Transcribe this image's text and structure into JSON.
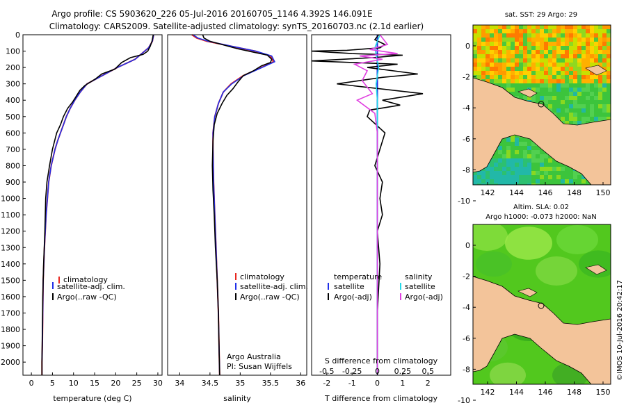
{
  "header": {
    "line1": "Argo profile: CS 5903620_226 05-Jul-2016 20160705_1146 4.392S 146.091E",
    "line2": "Climatology: CARS2009. Satellite-adjusted climatology: synTS_20160703.nc (2.1d earlier)"
  },
  "colors": {
    "climatology": "#e8261e",
    "satellite": "#1f2ee8",
    "argo": "#000000",
    "sal_satellite": "#22d8e8",
    "sal_argo": "#e040e0",
    "land": "#f3c49a",
    "sea_green": "#3cc43c"
  },
  "chart_data": [
    {
      "type": "line",
      "id": "temperature",
      "xlabel": "temperature (deg C)",
      "ylabel": "",
      "xlim": [
        -2,
        31
      ],
      "ylim": [
        2080,
        0
      ],
      "xticks": [
        "0",
        "5",
        "10",
        "15",
        "20",
        "25",
        "30"
      ],
      "yticks": [
        "0",
        "100",
        "200",
        "300",
        "400",
        "500",
        "600",
        "700",
        "800",
        "900",
        "1000",
        "1100",
        "1200",
        "1300",
        "1400",
        "1500",
        "1600",
        "1700",
        "1800",
        "1900",
        "2000"
      ],
      "legend": [
        "climatology",
        "satellite-adj. clim.",
        "Argo(..raw -QC)"
      ],
      "series": [
        {
          "name": "climatology",
          "x": [
            29.0,
            28.7,
            27.8,
            24.6,
            20.4,
            16.8,
            13.2,
            11.6,
            10.3,
            9.2,
            8.3,
            7.6,
            6.9,
            6.2,
            5.6,
            4.7,
            4.1,
            3.8,
            3.5,
            3.3,
            3.1,
            2.8,
            2.7,
            2.6,
            2.5,
            2.5
          ],
          "y": [
            0,
            40,
            80,
            150,
            200,
            250,
            300,
            350,
            400,
            450,
            500,
            550,
            600,
            650,
            700,
            800,
            900,
            1000,
            1100,
            1200,
            1300,
            1500,
            1700,
            1900,
            2000,
            2080
          ]
        },
        {
          "name": "satellite-adj. clim.",
          "x": [
            29.0,
            28.7,
            27.8,
            24.6,
            20.4,
            16.8,
            13.2,
            11.6,
            10.3,
            9.2,
            8.3,
            7.6,
            6.9,
            6.2,
            5.6,
            4.7,
            4.1,
            3.8,
            3.5,
            3.3,
            3.1,
            2.8,
            2.7,
            2.6,
            2.5,
            2.5
          ],
          "y": [
            0,
            40,
            80,
            150,
            200,
            250,
            300,
            350,
            400,
            450,
            500,
            550,
            600,
            650,
            700,
            800,
            900,
            1000,
            1100,
            1200,
            1300,
            1500,
            1700,
            1900,
            2000,
            2080
          ]
        },
        {
          "name": "Argo(..raw -QC)",
          "x": [
            28.9,
            28.6,
            28.2,
            27.6,
            26.5,
            23.5,
            21.4,
            19.8,
            16.7,
            15.2,
            12.7,
            11.5,
            10.3,
            9.8,
            8.6,
            7.6,
            6.9,
            6.0,
            5.0,
            4.3,
            3.7,
            3.4,
            3.2,
            2.9,
            2.7,
            2.6,
            2.5,
            2.5
          ],
          "y": [
            0,
            40,
            70,
            100,
            120,
            140,
            170,
            210,
            240,
            270,
            310,
            340,
            390,
            410,
            450,
            500,
            550,
            600,
            700,
            800,
            900,
            1000,
            1200,
            1400,
            1600,
            1800,
            2000,
            2080
          ]
        }
      ]
    },
    {
      "type": "line",
      "id": "salinity",
      "xlabel": "salinity",
      "xlim": [
        33.8,
        36.1
      ],
      "ylim": [
        2080,
        0
      ],
      "xticks": [
        "34",
        "34.5",
        "35",
        "35.5",
        "36"
      ],
      "legend": [
        "climatology",
        "satellite-adj. clim.",
        "Argo(..raw -QC)"
      ],
      "annotation": [
        "Argo Australia",
        "PI: Susan Wijffels"
      ],
      "series": [
        {
          "name": "climatology",
          "x": [
            34.2,
            34.28,
            34.45,
            34.85,
            35.25,
            35.5,
            35.55,
            35.35,
            35.05,
            34.85,
            34.72,
            34.64,
            34.58,
            34.55,
            34.55,
            34.56,
            34.58,
            34.6,
            34.62,
            34.64,
            34.65,
            34.66
          ],
          "y": [
            0,
            20,
            40,
            70,
            100,
            130,
            165,
            200,
            250,
            300,
            350,
            420,
            500,
            600,
            700,
            900,
            1100,
            1300,
            1500,
            1700,
            1900,
            2080
          ]
        },
        {
          "name": "satellite-adj. clim.",
          "x": [
            34.22,
            34.3,
            34.47,
            34.86,
            35.26,
            35.52,
            35.57,
            35.36,
            35.06,
            34.86,
            34.72,
            34.64,
            34.58,
            34.55,
            34.55,
            34.56,
            34.58,
            34.6,
            34.62,
            34.64,
            34.65,
            34.66
          ],
          "y": [
            0,
            20,
            40,
            70,
            100,
            130,
            165,
            200,
            250,
            300,
            350,
            420,
            500,
            600,
            700,
            900,
            1100,
            1300,
            1500,
            1700,
            1900,
            2080
          ]
        },
        {
          "name": "Argo(..raw -QC)",
          "x": [
            34.38,
            34.4,
            34.5,
            34.7,
            34.95,
            35.2,
            35.45,
            35.52,
            35.5,
            35.35,
            35.22,
            35.05,
            34.96,
            34.88,
            34.78,
            34.7,
            34.62,
            34.57,
            34.55,
            34.54,
            34.55,
            34.57,
            34.59,
            34.62,
            34.64,
            34.65,
            34.66
          ],
          "y": [
            0,
            20,
            40,
            60,
            85,
            105,
            125,
            150,
            170,
            190,
            220,
            250,
            290,
            330,
            370,
            420,
            480,
            550,
            650,
            800,
            950,
            1100,
            1300,
            1500,
            1700,
            1900,
            2080
          ]
        }
      ]
    },
    {
      "type": "line",
      "id": "differences",
      "xlabel": "T difference from climatology",
      "toplabel": "S difference from climatology",
      "xlim": [
        -2.6,
        2.9
      ],
      "ylim": [
        2080,
        0
      ],
      "xticks": [
        "-2",
        "-1",
        "0",
        "1",
        "2"
      ],
      "sticks": [
        "-0.5",
        "-0.25",
        "0",
        "0.25",
        "0.5"
      ],
      "legend": [
        "temperature",
        "satellite",
        "Argo(-adj)",
        "salinity",
        "satellite",
        "Argo(-adj)"
      ],
      "series": [
        {
          "name": "temperature satellite",
          "x": [
            0.0,
            0.0,
            0.0,
            0.0
          ],
          "y": [
            0,
            500,
            1500,
            2080
          ]
        },
        {
          "name": "temperature Argo(-adj)",
          "x": [
            0.05,
            -0.1,
            0.3,
            0.1,
            -1.2,
            -2.6,
            -1.0,
            1.0,
            -0.2,
            -2.6,
            0.8,
            -0.4,
            1.6,
            0.2,
            -1.6,
            1.8,
            0.2,
            0.9,
            -0.3,
            -0.4,
            0.3,
            0.1,
            -0.1,
            0.2,
            0.1,
            0.2,
            0.0,
            0.1,
            0.0,
            0.0,
            0.0
          ],
          "y": [
            0,
            30,
            60,
            80,
            95,
            100,
            115,
            125,
            140,
            160,
            180,
            200,
            240,
            260,
            300,
            360,
            400,
            430,
            460,
            500,
            600,
            700,
            800,
            900,
            1000,
            1100,
            1200,
            1400,
            1700,
            1900,
            2080
          ]
        },
        {
          "name": "salinity satellite",
          "x": [
            0.1,
            -0.1,
            0.05,
            -0.05,
            0.0,
            0.0,
            0.0,
            0.0
          ],
          "y": [
            0,
            80,
            200,
            300,
            400,
            600,
            1200,
            2080
          ]
        },
        {
          "name": "salinity Argo(-adj)",
          "x": [
            0.1,
            0.4,
            -0.3,
            0.8,
            -0.7,
            0.2,
            -0.9,
            -0.4,
            -0.6,
            -0.2,
            -0.8,
            -0.1,
            0.0,
            0.0,
            0.0
          ],
          "y": [
            0,
            60,
            90,
            115,
            130,
            150,
            180,
            220,
            280,
            360,
            400,
            480,
            600,
            1000,
            2080
          ]
        }
      ]
    },
    {
      "type": "heatmap",
      "id": "sst_map",
      "title": "sat. SST: 29 Argo: 29",
      "xticks": [
        "142",
        "144",
        "146",
        "148",
        "150"
      ],
      "yticks": [
        "0",
        "-2",
        "-4",
        "-6",
        "-8",
        "-10"
      ]
    },
    {
      "type": "heatmap",
      "id": "sla_map",
      "title_lines": [
        "Altim. SLA: 0.02",
        "Argo h1000: -0.073 h2000: NaN"
      ],
      "xticks": [
        "142",
        "144",
        "146",
        "148",
        "150"
      ],
      "yticks": [
        "0",
        "-2",
        "-4",
        "-6",
        "-8",
        "-10"
      ]
    }
  ],
  "footer_stamp": "©IMOS 10-Jul-2016 20:42:17"
}
